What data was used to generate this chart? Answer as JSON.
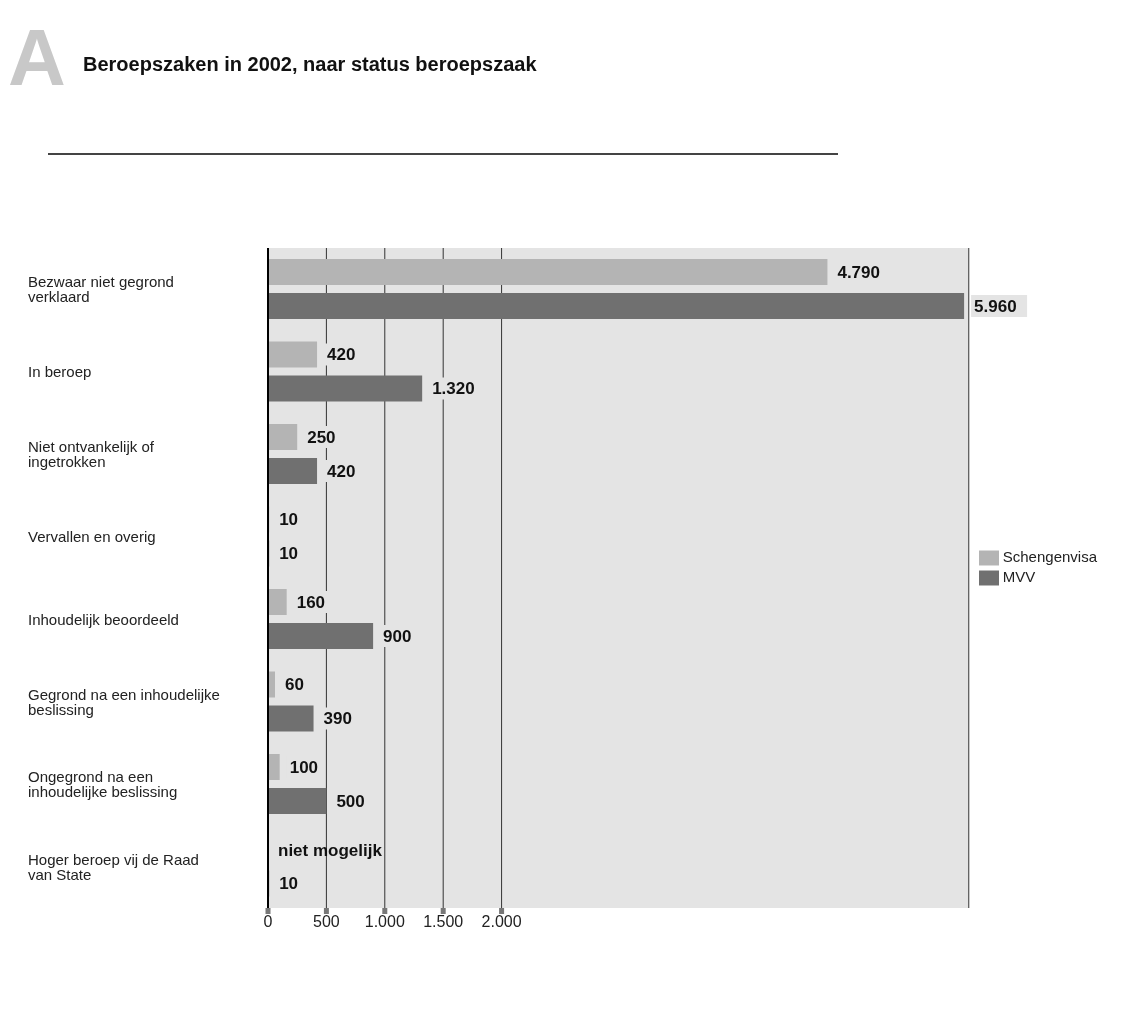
{
  "chart_data": {
    "type": "bar",
    "orientation": "horizontal",
    "title": "Beroepszaken in 2002, naar status beroepszaak",
    "annotations": [
      "A"
    ],
    "categories": [
      "Bezwaar niet gegrond verklaard",
      "In beroep",
      "Niet ontvankelijk of ingetrokken",
      "Vervallen en overig",
      "Inhoudelijk beoordeeld",
      "Gegrond na een inhoudelijke beslissing",
      "Ongegrond na een inhoudelijke beslissing",
      "Hoger beroep vij de Raad van State"
    ],
    "series": [
      {
        "name": "Schengenvisa",
        "color": "#b4b4b4",
        "values": [
          4790,
          420,
          250,
          10,
          160,
          60,
          100,
          null
        ],
        "value_labels": [
          "4.790",
          "420",
          "250",
          "10",
          "160",
          "60",
          "100",
          "niet mogelijk"
        ]
      },
      {
        "name": "MVV",
        "color": "#707070",
        "values": [
          5960,
          1320,
          420,
          10,
          900,
          390,
          500,
          10
        ],
        "value_labels": [
          "5.960",
          "1.320",
          "420",
          "10",
          "900",
          "390",
          "500",
          "10"
        ]
      }
    ],
    "xlim": [
      0,
      6000
    ],
    "xticks": [
      0,
      500,
      {
        "value": 1000,
        "label": "1.000"
      },
      {
        "value": 1500,
        "label": "1.500"
      },
      {
        "value": 2000,
        "label": "2.000"
      }
    ],
    "grid": "x",
    "legend": "right"
  }
}
